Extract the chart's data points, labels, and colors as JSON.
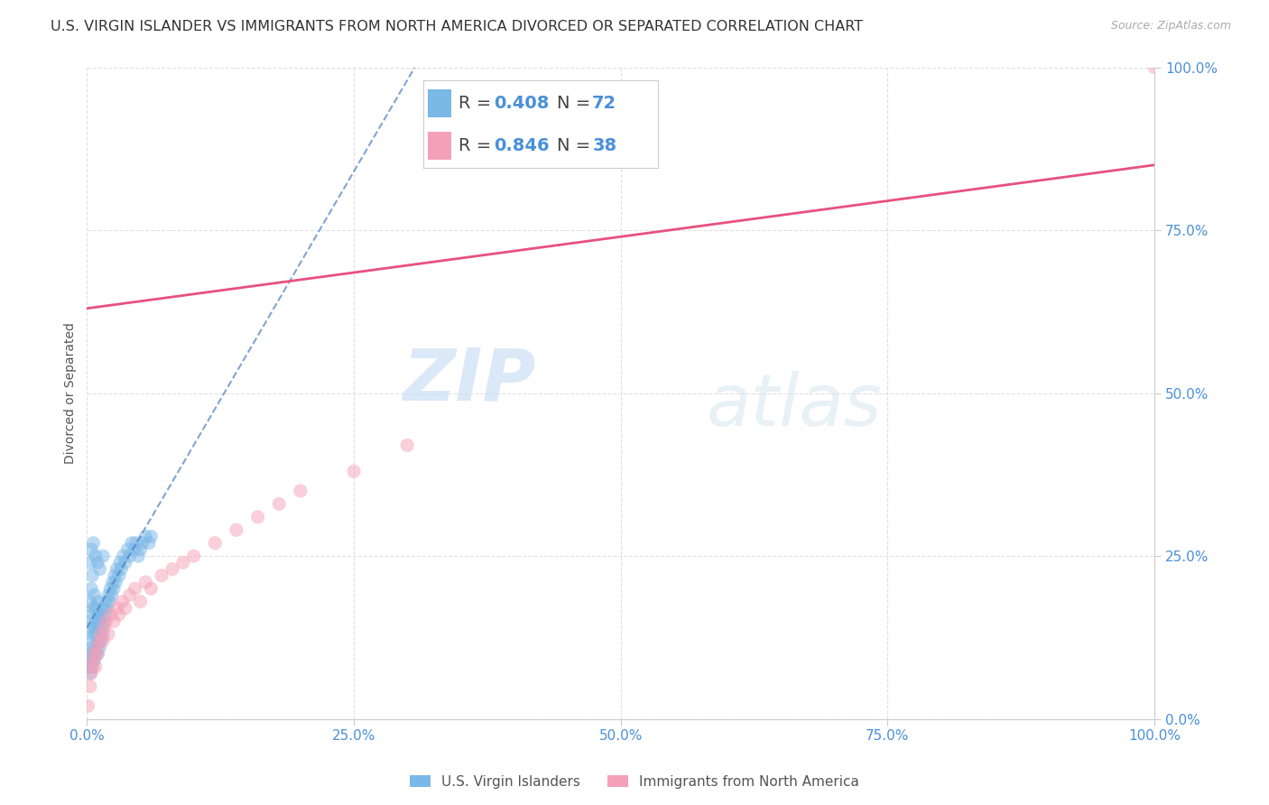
{
  "title": "U.S. VIRGIN ISLANDER VS IMMIGRANTS FROM NORTH AMERICA DIVORCED OR SEPARATED CORRELATION CHART",
  "source_text": "Source: ZipAtlas.com",
  "ylabel": "Divorced or Separated",
  "xlim": [
    0.0,
    1.0
  ],
  "ylim": [
    0.0,
    1.0
  ],
  "xticks": [
    0.0,
    0.25,
    0.5,
    0.75,
    1.0
  ],
  "yticks": [
    0.0,
    0.25,
    0.5,
    0.75,
    1.0
  ],
  "xticklabels": [
    "0.0%",
    "25.0%",
    "50.0%",
    "75.0%",
    "100.0%"
  ],
  "yticklabels": [
    "0.0%",
    "25.0%",
    "50.0%",
    "75.0%",
    "100.0%"
  ],
  "blue_color": "#7ab8e8",
  "pink_color": "#f4a0b8",
  "blue_line_color": "#4a7fc0",
  "pink_line_color": "#e85080",
  "R_blue": 0.408,
  "N_blue": 72,
  "R_pink": 0.846,
  "N_pink": 38,
  "legend_label_blue": "U.S. Virgin Islanders",
  "legend_label_pink": "Immigrants from North America",
  "watermark_zip": "ZIP",
  "watermark_atlas": "atlas",
  "tick_color": "#4a90d9",
  "title_fontsize": 11.5,
  "axis_label_fontsize": 10,
  "tick_fontsize": 11,
  "legend_fontsize": 14,
  "grid_color": "#e0e0e0",
  "background_color": "#ffffff",
  "blue_reg_intercept": 0.14,
  "blue_reg_slope": 2.8,
  "pink_reg_intercept": 0.63,
  "pink_reg_slope": 0.22,
  "blue_scatter_x": [
    0.001,
    0.002,
    0.002,
    0.003,
    0.003,
    0.003,
    0.004,
    0.004,
    0.004,
    0.005,
    0.005,
    0.005,
    0.005,
    0.006,
    0.006,
    0.006,
    0.007,
    0.007,
    0.007,
    0.008,
    0.008,
    0.008,
    0.009,
    0.009,
    0.01,
    0.01,
    0.01,
    0.011,
    0.011,
    0.012,
    0.012,
    0.013,
    0.013,
    0.014,
    0.015,
    0.015,
    0.016,
    0.017,
    0.018,
    0.019,
    0.02,
    0.021,
    0.022,
    0.023,
    0.024,
    0.025,
    0.026,
    0.027,
    0.028,
    0.03,
    0.031,
    0.032,
    0.034,
    0.036,
    0.038,
    0.04,
    0.042,
    0.044,
    0.046,
    0.048,
    0.05,
    0.052,
    0.055,
    0.058,
    0.06,
    0.003,
    0.004,
    0.006,
    0.008,
    0.01,
    0.012,
    0.015
  ],
  "blue_scatter_y": [
    0.08,
    0.1,
    0.15,
    0.07,
    0.12,
    0.18,
    0.09,
    0.14,
    0.2,
    0.08,
    0.11,
    0.16,
    0.22,
    0.1,
    0.13,
    0.17,
    0.09,
    0.14,
    0.19,
    0.1,
    0.13,
    0.17,
    0.11,
    0.15,
    0.1,
    0.14,
    0.18,
    0.12,
    0.16,
    0.11,
    0.15,
    0.12,
    0.16,
    0.14,
    0.13,
    0.17,
    0.15,
    0.16,
    0.18,
    0.17,
    0.19,
    0.18,
    0.2,
    0.19,
    0.21,
    0.2,
    0.22,
    0.21,
    0.23,
    0.22,
    0.24,
    0.23,
    0.25,
    0.24,
    0.26,
    0.25,
    0.27,
    0.26,
    0.27,
    0.25,
    0.26,
    0.27,
    0.28,
    0.27,
    0.28,
    0.24,
    0.26,
    0.27,
    0.25,
    0.24,
    0.23,
    0.25
  ],
  "pink_scatter_x": [
    0.001,
    0.003,
    0.004,
    0.005,
    0.006,
    0.007,
    0.008,
    0.009,
    0.01,
    0.012,
    0.013,
    0.015,
    0.016,
    0.018,
    0.02,
    0.022,
    0.025,
    0.028,
    0.03,
    0.033,
    0.036,
    0.04,
    0.045,
    0.05,
    0.055,
    0.06,
    0.07,
    0.08,
    0.09,
    0.1,
    0.12,
    0.14,
    0.16,
    0.18,
    0.2,
    0.25,
    0.3,
    1.0
  ],
  "pink_scatter_y": [
    0.02,
    0.05,
    0.07,
    0.08,
    0.09,
    0.1,
    0.08,
    0.11,
    0.1,
    0.12,
    0.13,
    0.12,
    0.14,
    0.15,
    0.13,
    0.16,
    0.15,
    0.17,
    0.16,
    0.18,
    0.17,
    0.19,
    0.2,
    0.18,
    0.21,
    0.2,
    0.22,
    0.23,
    0.24,
    0.25,
    0.27,
    0.29,
    0.31,
    0.33,
    0.35,
    0.38,
    0.42,
    1.0
  ],
  "dot_size": 120,
  "dot_alpha": 0.5
}
